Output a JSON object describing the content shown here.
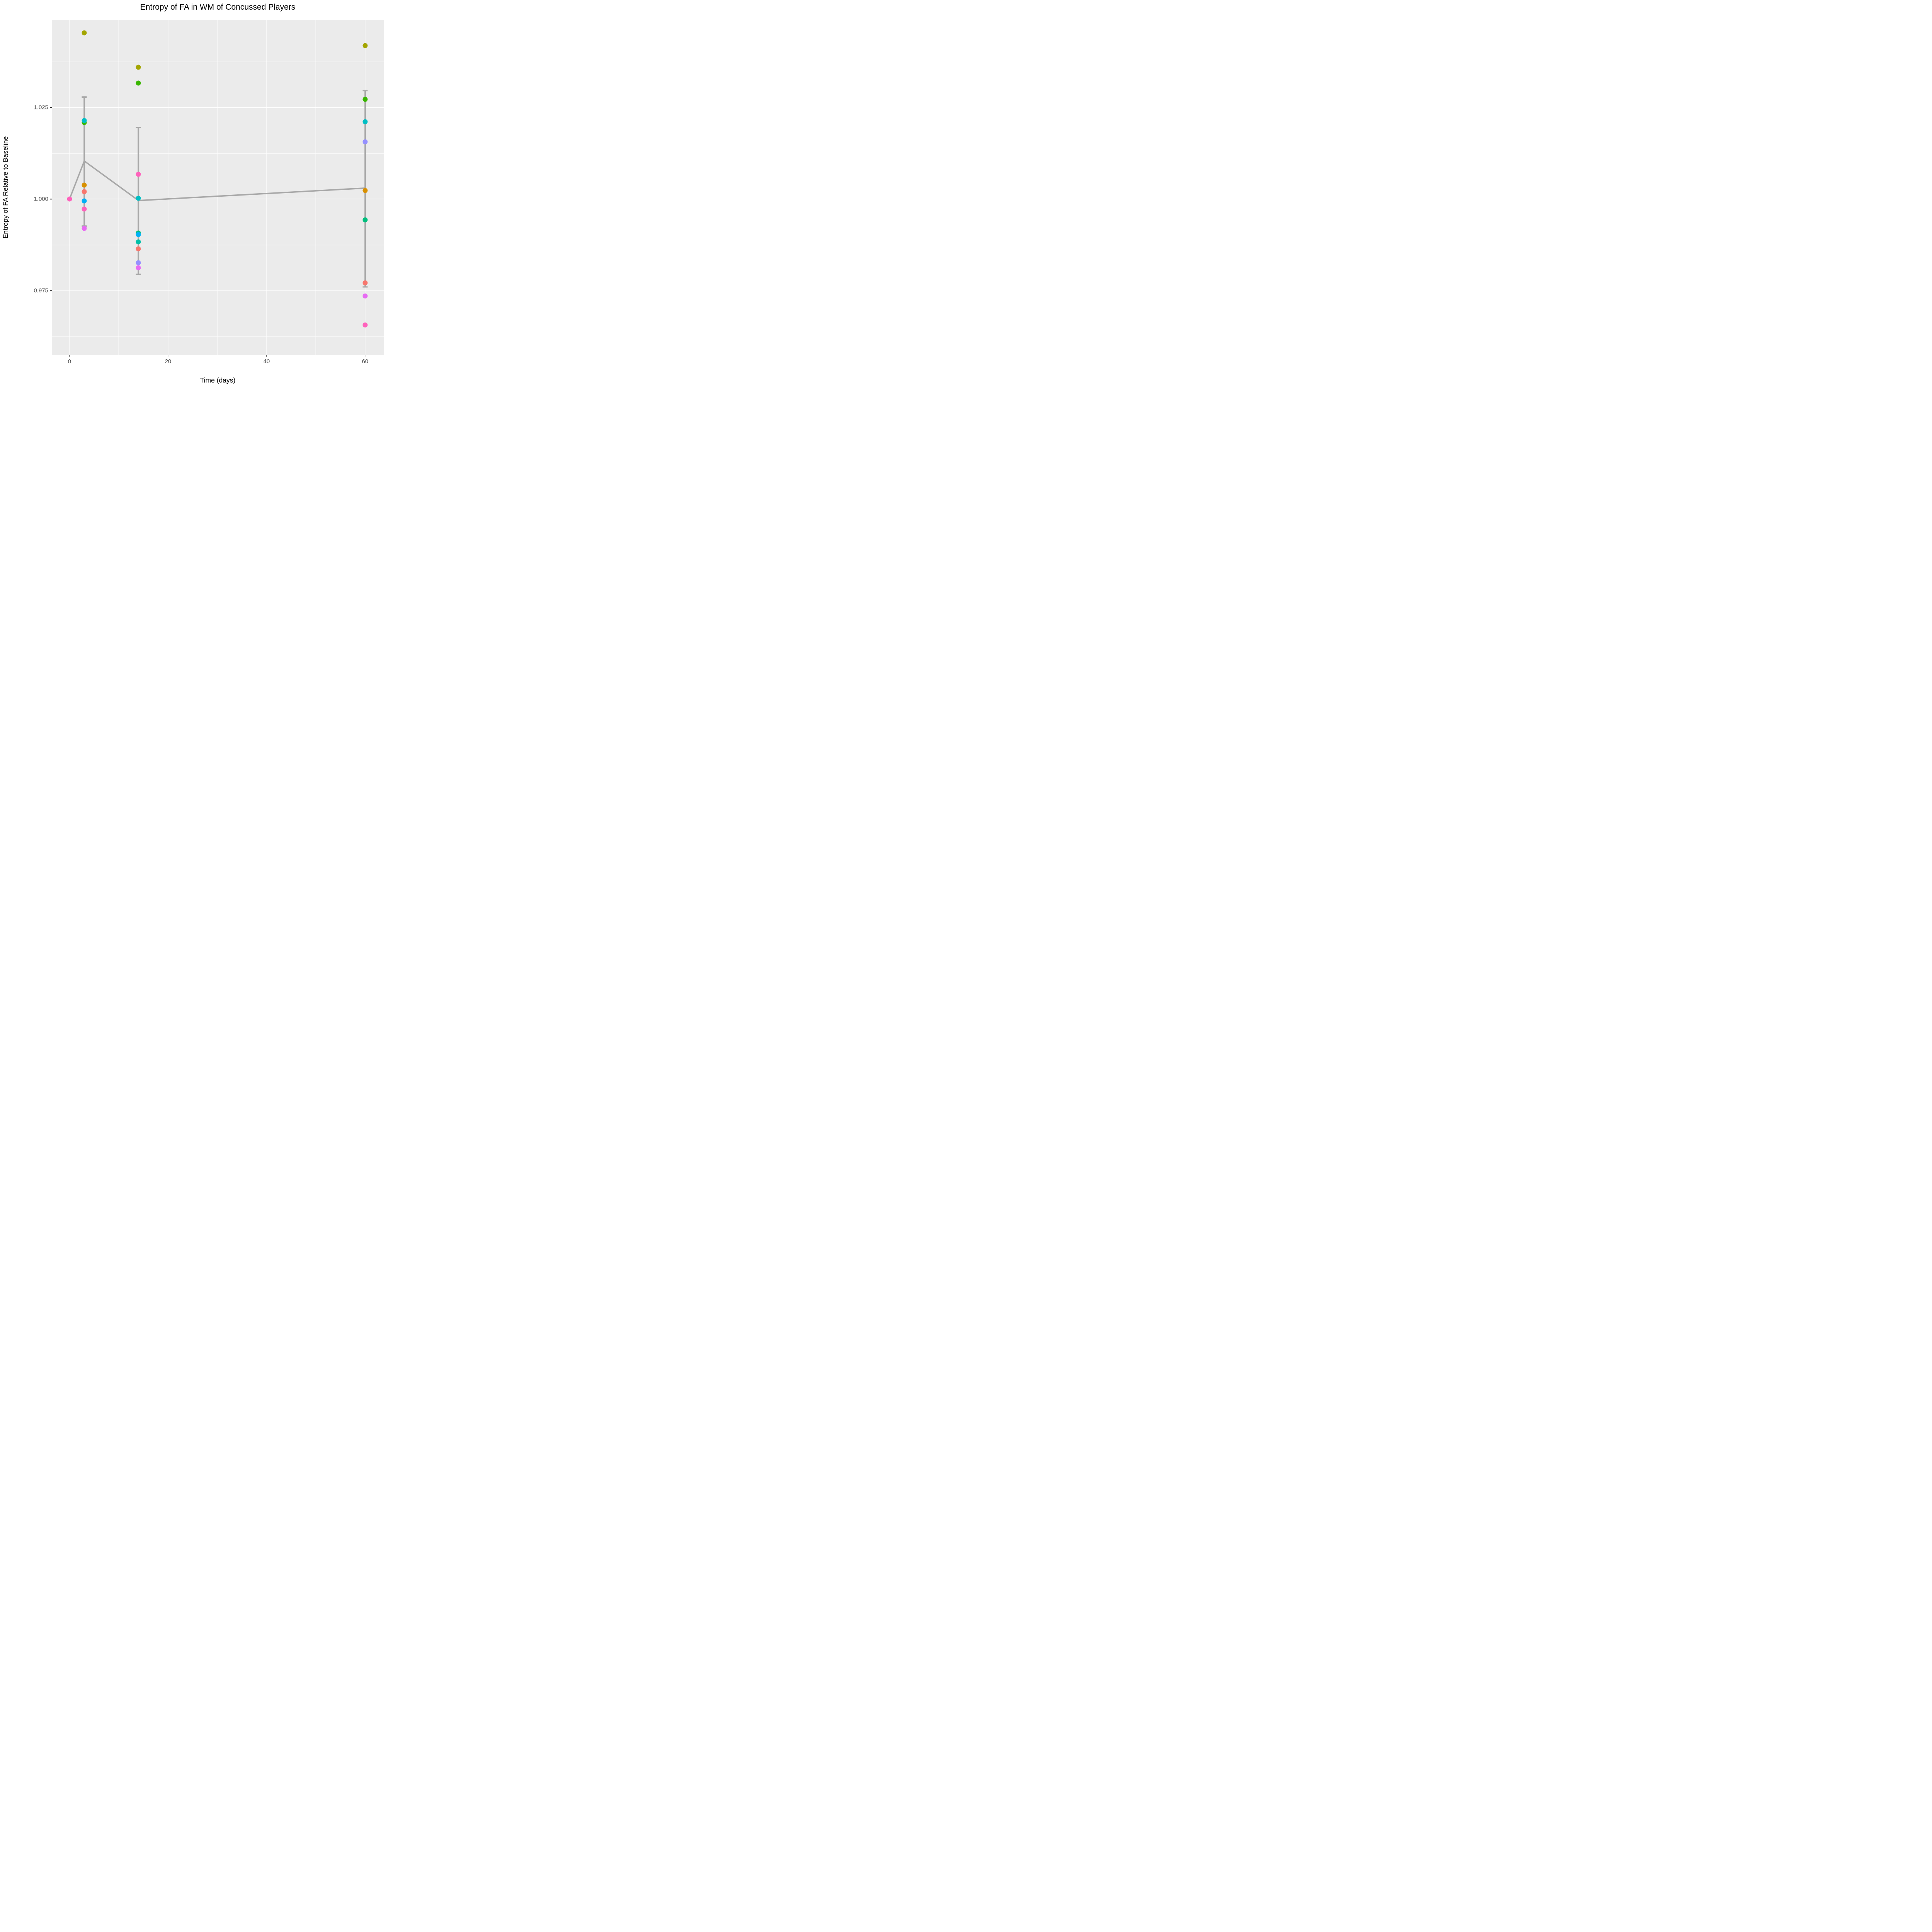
{
  "title": "Entropy of FA in WM of Concussed Players",
  "chart_data": {
    "type": "scatter",
    "title": "Entropy of FA in WM of Concussed Players",
    "xlabel": "Time (days)",
    "ylabel": "Entropy of FA Relative to Baseline",
    "x_domain": [
      -3.6,
      63.8
    ],
    "y_domain": [
      0.9574,
      1.049
    ],
    "grid": true,
    "legend": "none",
    "panel_background": "#EBEBEB",
    "grid_color": "#FFFFFF",
    "stat_color": "#A8A8A8",
    "tick_text_color": "#4D4D4D",
    "x_ticks": [
      {
        "label": "0",
        "value": 0
      },
      {
        "label": "20",
        "value": 20
      },
      {
        "label": "40",
        "value": 40
      },
      {
        "label": "60",
        "value": 60
      }
    ],
    "x_minor_ticks": [
      10,
      30,
      50
    ],
    "y_ticks": [
      {
        "label": "0.975",
        "value": 0.975
      },
      {
        "label": "1.000",
        "value": 1.0
      },
      {
        "label": "1.025",
        "value": 1.025
      }
    ],
    "y_minor_ticks": [
      0.9625,
      0.9875,
      1.0125,
      1.0375
    ],
    "series": [
      {
        "name": "player-salmon",
        "color": "#F8766D",
        "points": [
          [
            3,
            1.002
          ],
          [
            14,
            0.9864
          ],
          [
            60,
            0.9771
          ]
        ]
      },
      {
        "name": "player-orange",
        "color": "#D89000",
        "points": [
          [
            3,
            1.0038
          ],
          [
            60,
            1.0024
          ]
        ]
      },
      {
        "name": "player-olive",
        "color": "#A3A500",
        "points": [
          [
            3,
            1.0454
          ],
          [
            14,
            1.036
          ],
          [
            60,
            1.0419
          ]
        ]
      },
      {
        "name": "player-green",
        "color": "#39B600",
        "points": [
          [
            3,
            1.0209
          ],
          [
            14,
            1.0317
          ],
          [
            60,
            1.0273
          ]
        ]
      },
      {
        "name": "player-springgreen",
        "color": "#00BF7D",
        "points": [
          [
            14,
            0.9907
          ],
          [
            60,
            0.9943
          ]
        ]
      },
      {
        "name": "player-teal",
        "color": "#00C0A8",
        "points": [
          [
            14,
            0.9883
          ]
        ]
      },
      {
        "name": "player-turquoise",
        "color": "#00BFC4",
        "points": [
          [
            3,
            1.0215
          ],
          [
            14,
            1.0002
          ],
          [
            60,
            1.0211
          ]
        ]
      },
      {
        "name": "player-azure",
        "color": "#00B0F6",
        "points": [
          [
            3,
            0.9995
          ],
          [
            14,
            0.9903
          ]
        ]
      },
      {
        "name": "player-lavender",
        "color": "#9590FF",
        "points": [
          [
            14,
            0.9826
          ],
          [
            60,
            1.0157
          ]
        ]
      },
      {
        "name": "player-magenta",
        "color": "#E76BF3",
        "points": [
          [
            3,
            0.992
          ],
          [
            14,
            0.9812
          ],
          [
            60,
            0.9735
          ]
        ]
      },
      {
        "name": "player-pink",
        "color": "#FF62BC",
        "points": [
          [
            0,
            1.0
          ],
          [
            3,
            0.9973
          ],
          [
            14,
            1.0068
          ],
          [
            60,
            0.9656
          ]
        ]
      }
    ],
    "mean_line": [
      [
        0,
        1.0
      ],
      [
        3,
        1.0104
      ],
      [
        14,
        0.9996
      ],
      [
        60,
        1.003
      ]
    ],
    "error_bars": [
      {
        "x": 3,
        "low": 0.9926,
        "high": 1.0279
      },
      {
        "x": 14,
        "low": 0.9795,
        "high": 1.0196
      },
      {
        "x": 60,
        "low": 0.976,
        "high": 1.0296
      }
    ]
  }
}
